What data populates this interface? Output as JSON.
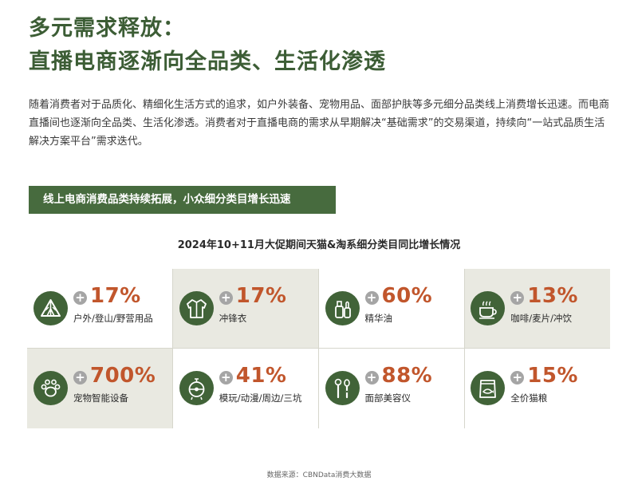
{
  "title": {
    "line1": "多元需求释放：",
    "line2": "直播电商逐渐向全品类、生活化渗透"
  },
  "body_text": "随着消费者对于品质化、精细化生活方式的追求，如户外装备、宠物用品、面部护肤等多元细分品类线上消费增长迅速。而电商直播间也逐渐向全品类、生活化渗透。消费者对于直播电商的需求从早期解决“基础需求”的交易渠道，持续向“一站式品质生活解决方案平台”需求迭代。",
  "banner": "线上电商消费品类持续拓展，小众细分类目增长迅速",
  "chart_title": "2024年10+11月大促期间天猫&淘系细分类目同比增长情况",
  "plus_symbol": "+",
  "colors": {
    "accent_green": "#416338",
    "title_green": "#3c5d35",
    "percent_orange": "#c1562c",
    "shade": "#e9e9e1"
  },
  "items": [
    {
      "growth": "17%",
      "label": "户外/登山/野营用品",
      "icon": "tent-icon",
      "shaded": false
    },
    {
      "growth": "17%",
      "label": "冲锋衣",
      "icon": "jacket-icon",
      "shaded": true
    },
    {
      "growth": "60%",
      "label": "精华油",
      "icon": "serum-bottle-icon",
      "shaded": false
    },
    {
      "growth": "13%",
      "label": "咖啡/麦片/冲饮",
      "icon": "coffee-cup-icon",
      "shaded": true
    },
    {
      "growth": "700%",
      "label": "宠物智能设备",
      "icon": "paw-icon",
      "shaded": true
    },
    {
      "growth": "41%",
      "label": "模玩/动漫/周边/三坑",
      "icon": "gacha-toy-icon",
      "shaded": false
    },
    {
      "growth": "88%",
      "label": "面部美容仪",
      "icon": "beauty-device-icon",
      "shaded": false
    },
    {
      "growth": "15%",
      "label": "全价猫粮",
      "icon": "cat-food-bag-icon",
      "shaded": false
    }
  ],
  "source": "数据来源：CBNData消费大数据"
}
